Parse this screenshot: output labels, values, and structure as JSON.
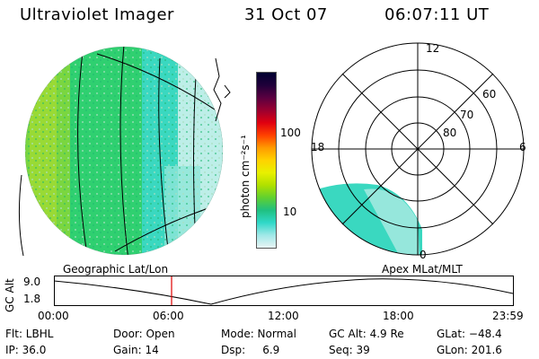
{
  "header": {
    "instrument": "Ultraviolet Imager",
    "date": "31 Oct 07",
    "time": "06:07:11 UT"
  },
  "colorbar": {
    "label": "photon cm⁻²s⁻¹",
    "ticks": [
      "100",
      "10"
    ],
    "colors": [
      "#000030",
      "#20003a",
      "#5a0040",
      "#9a0030",
      "#e00010",
      "#ff4000",
      "#ff9a00",
      "#ffd200",
      "#e8f000",
      "#b0e000",
      "#60d030",
      "#20c080",
      "#30d8c8",
      "#a0e8e8",
      "#e8f4f4"
    ]
  },
  "globe": {
    "colors": {
      "green": "#2fd070",
      "yellow": "#b8e020",
      "teal": "#3ad8c0",
      "pale": "#bdeee8"
    }
  },
  "polar_plot": {
    "labels": [
      "12",
      "18",
      "6",
      "0",
      "60",
      "70",
      "80"
    ]
  },
  "timeline": {
    "left_label": "Geographic Lat/Lon",
    "right_label": "Apex MLat/MLT",
    "axis_label": "GC Alt",
    "y_ticks": [
      "9.0",
      "1.8"
    ],
    "x_ticks": [
      "00:00",
      "06:00",
      "12:00",
      "18:00",
      "23:59"
    ],
    "marker_color": "#e00000"
  },
  "footer": {
    "filter": "Flt: LBHL",
    "ip": "IP: 36.0",
    "door": "Door: Open",
    "gain": "Gain: 14",
    "mode": "Mode: Normal",
    "dsp": "Dsp:     6.9",
    "gc_alt": "GC Alt: 4.9 Re",
    "seq": "Seq: 39",
    "glat": "GLat: −48.4",
    "glon": "GLon: 201.6"
  }
}
